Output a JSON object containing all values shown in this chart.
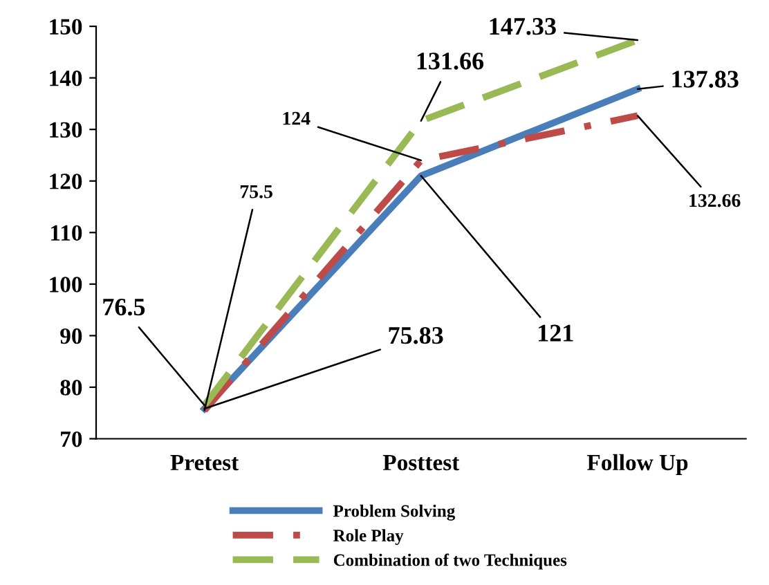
{
  "chart_data": {
    "type": "line",
    "categories": [
      "Pretest",
      "Posttest",
      "Follow Up"
    ],
    "series": [
      {
        "name": "Problem Solving",
        "color": "#4a7ebb",
        "values": [
          75.83,
          121,
          137.83
        ],
        "line_style": "solid"
      },
      {
        "name": "Role Play",
        "color": "#be4b48",
        "values": [
          75.5,
          124,
          132.66
        ],
        "line_style": "dashdot"
      },
      {
        "name": "Combination of two Techniques",
        "color": "#98b954",
        "values": [
          76.5,
          131.66,
          147.33
        ],
        "line_style": "dashed"
      }
    ],
    "ylim": [
      70,
      150
    ],
    "yticks": [
      70,
      80,
      90,
      100,
      110,
      120,
      130,
      140,
      150
    ],
    "grid": false,
    "legend": "bottom",
    "marker": "none",
    "annotations": [
      {
        "text": "76.5",
        "x": "Pretest",
        "y": 76.5
      },
      {
        "text": "75.5",
        "x": "Pretest",
        "y": 75.5
      },
      {
        "text": "75.83",
        "x": "Pretest",
        "y": 75.83
      },
      {
        "text": "124",
        "x": "Posttest",
        "y": 124
      },
      {
        "text": "131.66",
        "x": "Posttest",
        "y": 131.66
      },
      {
        "text": "121",
        "x": "Posttest",
        "y": 121
      },
      {
        "text": "147.33",
        "x": "Follow Up",
        "y": 147.33
      },
      {
        "text": "137.83",
        "x": "Follow Up",
        "y": 137.83
      },
      {
        "text": "132.66",
        "x": "Follow Up",
        "y": 132.66
      }
    ]
  }
}
